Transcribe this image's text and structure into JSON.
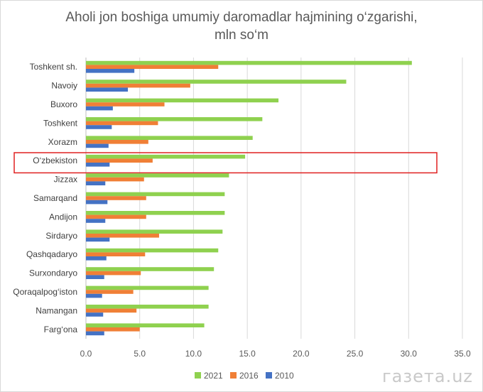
{
  "page": {
    "title_line1": "Aholi jon boshiga umumiy daromadlar hajmining o‘zgarishi,",
    "title_line2": "mln so‘m",
    "watermark": "газета.uz"
  },
  "chart_data": {
    "type": "bar",
    "orientation": "horizontal",
    "categories": [
      "Toshkent sh.",
      "Navoiy",
      "Buxoro",
      "Toshkent",
      "Xorazm",
      "O‘zbekiston",
      "Jizzax",
      "Samarqand",
      "Andijon",
      "Sirdaryo",
      "Qashqadaryo",
      "Surxondaryo",
      "Qoraqalpog‘iston",
      "Namangan",
      "Farg‘ona"
    ],
    "series": [
      {
        "name": "2021",
        "color": "#8fd14f",
        "values": [
          30.3,
          24.2,
          17.9,
          16.4,
          15.5,
          14.8,
          13.3,
          12.9,
          12.9,
          12.7,
          12.3,
          11.9,
          11.4,
          11.4,
          11.0
        ]
      },
      {
        "name": "2016",
        "color": "#f07f36",
        "values": [
          12.3,
          9.7,
          7.3,
          6.7,
          5.8,
          6.2,
          5.4,
          5.6,
          5.6,
          6.8,
          5.5,
          5.1,
          4.4,
          4.7,
          5.0
        ]
      },
      {
        "name": "2010",
        "color": "#4472c4",
        "values": [
          4.5,
          3.9,
          2.5,
          2.4,
          2.1,
          2.2,
          1.8,
          2.0,
          1.8,
          2.2,
          1.9,
          1.7,
          1.5,
          1.6,
          1.7
        ]
      }
    ],
    "xlim": [
      0,
      35
    ],
    "xticks": [
      "0.0",
      "5.0",
      "10.0",
      "15.0",
      "20.0",
      "25.0",
      "30.0",
      "35.0"
    ],
    "grid": true,
    "legend": "bottom",
    "highlight_category": "O‘zbekiston",
    "highlight_color": "#e02020"
  }
}
